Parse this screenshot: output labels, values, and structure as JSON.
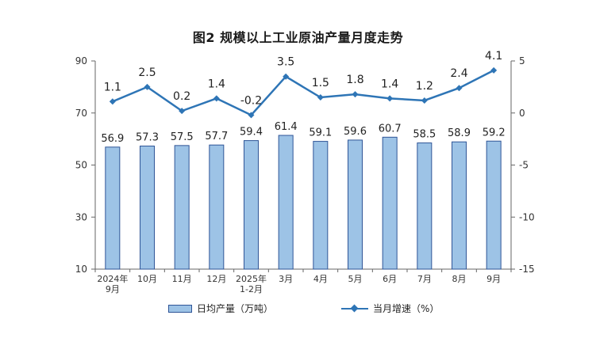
{
  "chart_data": {
    "type": "bar",
    "title": "图2  规模以上工业原油产量月度走势",
    "categories": [
      [
        "2024年",
        "9月"
      ],
      [
        "10月"
      ],
      [
        "11月"
      ],
      [
        "12月"
      ],
      [
        "2025年",
        "1-2月"
      ],
      [
        "3月"
      ],
      [
        "4月"
      ],
      [
        "5月"
      ],
      [
        "6月"
      ],
      [
        "7月"
      ],
      [
        "8月"
      ],
      [
        "9月"
      ]
    ],
    "series": [
      {
        "name": "日均产量（万吨）",
        "type": "bar",
        "axis": "left",
        "values": [
          56.9,
          57.3,
          57.5,
          57.7,
          59.4,
          61.4,
          59.1,
          59.6,
          60.7,
          58.5,
          58.9,
          59.2
        ]
      },
      {
        "name": "当月增速（%）",
        "type": "line",
        "axis": "right",
        "values": [
          1.1,
          2.5,
          0.2,
          1.4,
          -0.2,
          3.5,
          1.5,
          1.8,
          1.4,
          1.2,
          2.4,
          4.1
        ]
      }
    ],
    "y_left": {
      "ylim": [
        10,
        90
      ],
      "ticks": [
        10,
        30,
        50,
        70,
        90
      ]
    },
    "y_right": {
      "ylim": [
        -15,
        5
      ],
      "ticks": [
        -15,
        -10,
        -5,
        0,
        5
      ]
    },
    "grid": false,
    "legend_position": "bottom",
    "colors": {
      "bar_fill": "#9dc3e6",
      "bar_stroke": "#2f5597",
      "line": "#2e75b6"
    }
  }
}
